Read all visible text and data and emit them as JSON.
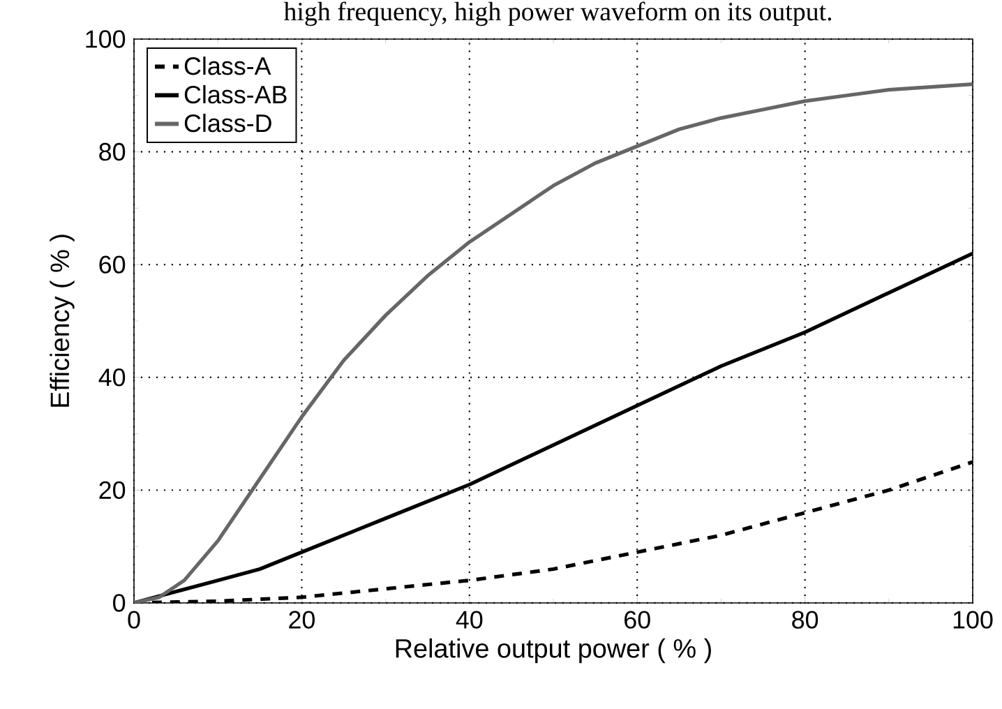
{
  "chart_data": {
    "type": "line",
    "xlabel": "Relative output power ( % )",
    "ylabel": "Efficiency ( % )",
    "annotations": [
      "high frequency, high power waveform on its output."
    ],
    "xlim": [
      0,
      100
    ],
    "ylim": [
      0,
      100
    ],
    "xticks": [
      0,
      20,
      40,
      60,
      80,
      100
    ],
    "yticks": [
      0,
      20,
      40,
      60,
      80,
      100
    ],
    "grid": true,
    "legend": "top left",
    "marker": "none",
    "series": [
      {
        "name": "Class-A",
        "color": "#000000",
        "line_style": "dashed",
        "x": [
          0,
          10,
          20,
          30,
          40,
          50,
          60,
          70,
          80,
          90,
          100
        ],
        "values": [
          0,
          0.3,
          1,
          2.5,
          4,
          6,
          9,
          12,
          16,
          20,
          25
        ]
      },
      {
        "name": "Class-AB",
        "color": "#000000",
        "line_style": "solid",
        "x": [
          0,
          5,
          10,
          15,
          20,
          30,
          40,
          50,
          60,
          70,
          80,
          90,
          100
        ],
        "values": [
          0,
          2,
          4,
          6,
          9,
          15,
          21,
          28,
          35,
          42,
          48,
          55,
          62
        ]
      },
      {
        "name": "Class-D",
        "color": "#666666",
        "line_style": "solid",
        "x": [
          0,
          3,
          6,
          10,
          15,
          20,
          25,
          30,
          35,
          40,
          45,
          50,
          55,
          60,
          65,
          70,
          75,
          80,
          85,
          90,
          95,
          100
        ],
        "values": [
          0,
          1,
          4,
          11,
          22,
          33,
          43,
          51,
          58,
          64,
          69,
          74,
          78,
          81,
          84,
          86,
          87.5,
          89,
          90,
          91,
          91.5,
          92
        ]
      }
    ]
  }
}
